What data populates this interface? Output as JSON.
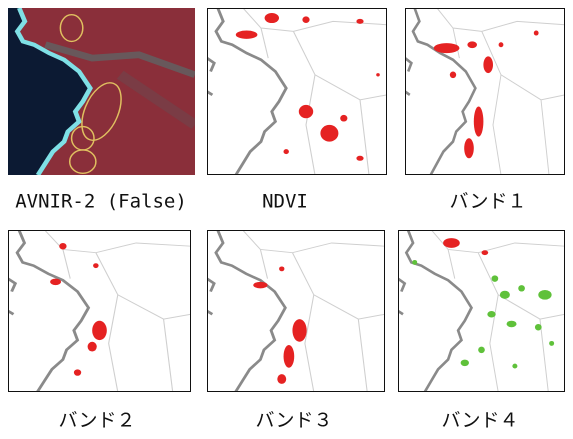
{
  "panels": [
    {
      "caption": "AVNIR-2 (False)"
    },
    {
      "caption": "NDVI"
    },
    {
      "caption": "バンド１"
    },
    {
      "caption": "バンド２"
    },
    {
      "caption": "バンド３"
    },
    {
      "caption": "バンド４"
    }
  ]
}
